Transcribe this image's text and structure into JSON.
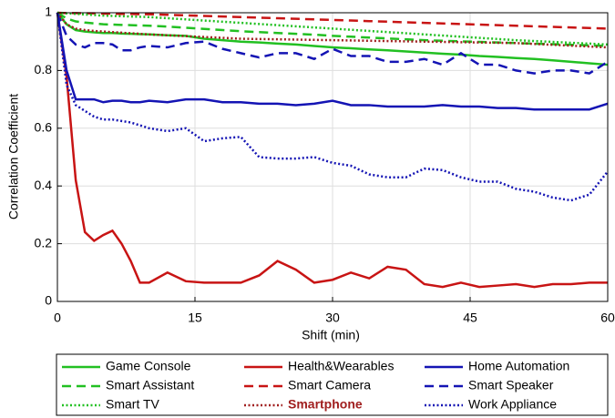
{
  "chart_data": {
    "type": "line",
    "xlabel": "Shift (min)",
    "ylabel": "Correlation Coefficient",
    "x": [
      0,
      1,
      2,
      3,
      4,
      5,
      6,
      7,
      8,
      9,
      10,
      12,
      14,
      16,
      18,
      20,
      22,
      24,
      26,
      28,
      30,
      32,
      34,
      36,
      38,
      40,
      42,
      44,
      46,
      48,
      50,
      52,
      54,
      56,
      58,
      60
    ],
    "xlim": [
      0,
      60
    ],
    "xticks": [
      0,
      15,
      30,
      45,
      60
    ],
    "ylim": [
      0,
      1
    ],
    "yticks": [
      0,
      0.2,
      0.4,
      0.6,
      0.8,
      1
    ],
    "grid": true,
    "series": [
      {
        "name": "Game Console",
        "color": "#22c022",
        "style": "solid",
        "values": [
          1,
          0.96,
          0.94,
          0.935,
          0.932,
          0.93,
          0.93,
          0.928,
          0.927,
          0.926,
          0.925,
          0.922,
          0.92,
          0.91,
          0.905,
          0.9,
          0.897,
          0.893,
          0.89,
          0.885,
          0.88,
          0.877,
          0.873,
          0.87,
          0.866,
          0.862,
          0.858,
          0.855,
          0.85,
          0.847,
          0.843,
          0.84,
          0.835,
          0.83,
          0.825,
          0.82
        ]
      },
      {
        "name": "Health&Wearables",
        "color": "#c81414",
        "style": "solid",
        "values": [
          1,
          0.78,
          0.42,
          0.24,
          0.21,
          0.23,
          0.245,
          0.2,
          0.14,
          0.065,
          0.065,
          0.1,
          0.07,
          0.065,
          0.065,
          0.065,
          0.09,
          0.14,
          0.11,
          0.065,
          0.075,
          0.1,
          0.08,
          0.12,
          0.11,
          0.06,
          0.05,
          0.065,
          0.05,
          0.055,
          0.06,
          0.05,
          0.06,
          0.06,
          0.065,
          0.065
        ]
      },
      {
        "name": "Home Automation",
        "color": "#1414b4",
        "style": "solid",
        "values": [
          1,
          0.8,
          0.7,
          0.7,
          0.7,
          0.69,
          0.695,
          0.695,
          0.69,
          0.69,
          0.695,
          0.69,
          0.7,
          0.7,
          0.69,
          0.69,
          0.685,
          0.685,
          0.68,
          0.685,
          0.695,
          0.68,
          0.68,
          0.675,
          0.675,
          0.675,
          0.68,
          0.675,
          0.675,
          0.67,
          0.67,
          0.665,
          0.665,
          0.665,
          0.665,
          0.685
        ]
      },
      {
        "name": "Smart Assistant",
        "color": "#22c022",
        "style": "dashed",
        "values": [
          1,
          0.98,
          0.97,
          0.966,
          0.963,
          0.96,
          0.959,
          0.958,
          0.957,
          0.956,
          0.955,
          0.952,
          0.948,
          0.944,
          0.94,
          0.936,
          0.933,
          0.93,
          0.927,
          0.924,
          0.92,
          0.917,
          0.914,
          0.911,
          0.908,
          0.905,
          0.903,
          0.901,
          0.899,
          0.897,
          0.895,
          0.893,
          0.891,
          0.889,
          0.887,
          0.885
        ]
      },
      {
        "name": "Smart Camera",
        "color": "#c81414",
        "style": "dashed",
        "values": [
          1,
          0.999,
          0.999,
          0.998,
          0.998,
          0.997,
          0.997,
          0.996,
          0.996,
          0.995,
          0.995,
          0.993,
          0.991,
          0.989,
          0.987,
          0.985,
          0.983,
          0.981,
          0.979,
          0.977,
          0.975,
          0.973,
          0.971,
          0.969,
          0.967,
          0.965,
          0.963,
          0.961,
          0.959,
          0.957,
          0.955,
          0.953,
          0.951,
          0.949,
          0.947,
          0.945
        ]
      },
      {
        "name": "Smart Speaker",
        "color": "#1414b4",
        "style": "dashed",
        "values": [
          1,
          0.92,
          0.89,
          0.88,
          0.895,
          0.895,
          0.89,
          0.87,
          0.87,
          0.88,
          0.885,
          0.88,
          0.895,
          0.9,
          0.875,
          0.86,
          0.845,
          0.86,
          0.86,
          0.84,
          0.875,
          0.85,
          0.85,
          0.83,
          0.83,
          0.84,
          0.82,
          0.86,
          0.82,
          0.82,
          0.8,
          0.79,
          0.8,
          0.8,
          0.79,
          0.83
        ]
      },
      {
        "name": "Smart TV",
        "color": "#22c022",
        "style": "dotted",
        "values": [
          1,
          0.998,
          0.996,
          0.994,
          0.992,
          0.99,
          0.989,
          0.988,
          0.987,
          0.986,
          0.985,
          0.981,
          0.977,
          0.973,
          0.969,
          0.965,
          0.961,
          0.957,
          0.953,
          0.949,
          0.945,
          0.941,
          0.937,
          0.933,
          0.929,
          0.925,
          0.921,
          0.917,
          0.913,
          0.909,
          0.905,
          0.902,
          0.899,
          0.896,
          0.893,
          0.89
        ]
      },
      {
        "name": "Smartphone",
        "color": "#a01e1e",
        "style": "dotted",
        "highlight": true,
        "values": [
          1,
          0.96,
          0.945,
          0.94,
          0.937,
          0.935,
          0.933,
          0.931,
          0.929,
          0.927,
          0.925,
          0.922,
          0.919,
          0.916,
          0.913,
          0.91,
          0.909,
          0.908,
          0.907,
          0.906,
          0.905,
          0.904,
          0.903,
          0.902,
          0.901,
          0.9,
          0.899,
          0.898,
          0.897,
          0.896,
          0.895,
          0.892,
          0.889,
          0.886,
          0.883,
          0.88
        ]
      },
      {
        "name": "Work Appliance",
        "color": "#1414b4",
        "style": "dotted",
        "values": [
          1,
          0.75,
          0.68,
          0.66,
          0.64,
          0.63,
          0.63,
          0.625,
          0.62,
          0.61,
          0.6,
          0.59,
          0.6,
          0.555,
          0.565,
          0.57,
          0.5,
          0.495,
          0.495,
          0.5,
          0.48,
          0.47,
          0.44,
          0.43,
          0.43,
          0.46,
          0.455,
          0.43,
          0.415,
          0.415,
          0.39,
          0.38,
          0.36,
          0.35,
          0.37,
          0.45
        ]
      }
    ]
  }
}
